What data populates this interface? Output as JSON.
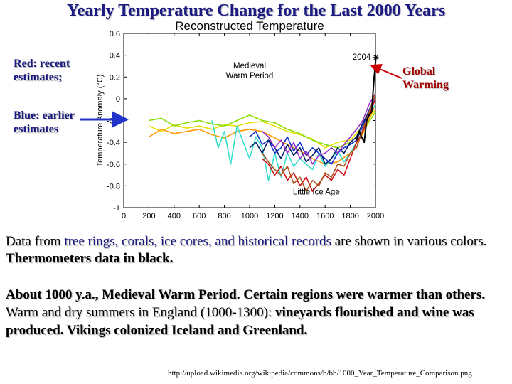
{
  "slide": {
    "title": "Yearly Temperature Change for the Last 2000 Years",
    "red_label": "Red: recent estimates;",
    "blue_label": "Blue: earlier estimates",
    "global_warming_label": "Global Warming",
    "para1_a": "Data from ",
    "para1_b": "tree rings, corals, ice cores, and historical records",
    "para1_c": " are shown in various colors. ",
    "para1_d": "Thermometers data in black.",
    "para2_a": "About 1000 y.a., Medieval Warm Period. Certain regions were warmer than others.",
    "para2_b": " Warm and dry summers in England (1000-1300): ",
    "para2_c": "vineyards flourished and wine was produced. Vikings colonized Iceland and Greenland.",
    "source": "http://upload.wikimedia.org/wikipedia/commons/b/bb/1000_Year_Temperature_Comparison.png"
  },
  "colors": {
    "title": "#1a1a80",
    "red_text": "#a00000",
    "arrow_blue": "#2233cc",
    "arrow_red": "#cc0000"
  },
  "chart_data": {
    "type": "line",
    "title": "Reconstructed Temperature",
    "xlabel": "",
    "ylabel": "Temperature Anomaly (°C)",
    "xlim": [
      0,
      2000
    ],
    "ylim": [
      -1,
      0.6
    ],
    "xticks": [
      0,
      200,
      400,
      600,
      800,
      1000,
      1200,
      1400,
      1600,
      1800,
      2000
    ],
    "yticks": [
      -1,
      -0.8,
      -0.6,
      -0.4,
      -0.2,
      0,
      0.2,
      0.4,
      0.6
    ],
    "ytick_labels": [
      "-1",
      "-0.8",
      "-0.6",
      "-0.4",
      "-0.2",
      "0",
      "0.2",
      "0.4",
      "0.6"
    ],
    "annotations": [
      {
        "text": "Medieval",
        "x": 1000,
        "y": 0.28
      },
      {
        "text": "Warm Period",
        "x": 1000,
        "y": 0.19
      },
      {
        "text": "Little Ice Age",
        "x": 1530,
        "y": -0.88
      },
      {
        "text": "2004",
        "x": 1890,
        "y": 0.36
      }
    ],
    "marker_2004": {
      "x": 2004,
      "y": 0.38
    },
    "series": [
      {
        "name": "yellow",
        "color": "#e8e000",
        "x": [
          200,
          300,
          400,
          500,
          600,
          700,
          800,
          900,
          1000,
          1100,
          1200,
          1300,
          1400,
          1500,
          1600,
          1700,
          1800,
          1900,
          2000
        ],
        "values": [
          -0.25,
          -0.3,
          -0.24,
          -0.27,
          -0.25,
          -0.28,
          -0.24,
          -0.25,
          -0.22,
          -0.21,
          -0.25,
          -0.3,
          -0.33,
          -0.37,
          -0.45,
          -0.4,
          -0.38,
          -0.25,
          -0.1
        ]
      },
      {
        "name": "lime",
        "color": "#88dd00",
        "x": [
          200,
          300,
          400,
          500,
          600,
          700,
          800,
          900,
          1000,
          1100,
          1200,
          1300,
          1400,
          1500,
          1600,
          1700,
          1800,
          1900,
          2000
        ],
        "values": [
          -0.2,
          -0.18,
          -0.25,
          -0.22,
          -0.2,
          -0.23,
          -0.25,
          -0.2,
          -0.15,
          -0.2,
          -0.22,
          -0.28,
          -0.32,
          -0.38,
          -0.42,
          -0.45,
          -0.4,
          -0.3,
          -0.12
        ]
      },
      {
        "name": "orange",
        "color": "#ff9900",
        "x": [
          200,
          300,
          400,
          500,
          600,
          700,
          800,
          900,
          1000,
          1100,
          1200,
          1300,
          1400,
          1500,
          1600,
          1700,
          1800,
          1900,
          2000
        ],
        "values": [
          -0.35,
          -0.28,
          -0.32,
          -0.3,
          -0.28,
          -0.33,
          -0.36,
          -0.3,
          -0.28,
          -0.3,
          -0.36,
          -0.42,
          -0.48,
          -0.55,
          -0.6,
          -0.58,
          -0.5,
          -0.32,
          -0.05
        ]
      },
      {
        "name": "cyan",
        "color": "#33ddcc",
        "x": [
          700,
          750,
          800,
          850,
          900,
          950,
          1000,
          1050,
          1100,
          1150,
          1200,
          1250,
          1300,
          1350,
          1400,
          1450,
          1500,
          1550,
          1600,
          1650,
          1700,
          1750,
          1800,
          1850,
          1900,
          1950,
          2000
        ],
        "values": [
          -0.2,
          -0.45,
          -0.3,
          -0.6,
          -0.25,
          -0.4,
          -0.55,
          -0.35,
          -0.45,
          -0.75,
          -0.5,
          -0.72,
          -0.5,
          -0.62,
          -0.55,
          -0.6,
          -0.65,
          -0.5,
          -0.62,
          -0.55,
          -0.48,
          -0.58,
          -0.5,
          -0.4,
          -0.3,
          -0.15,
          -0.05
        ]
      },
      {
        "name": "blue",
        "color": "#1133cc",
        "x": [
          1000,
          1050,
          1100,
          1150,
          1200,
          1250,
          1300,
          1350,
          1400,
          1450,
          1500,
          1550,
          1600,
          1650,
          1700,
          1750,
          1800,
          1850,
          1900,
          1950,
          2000
        ],
        "values": [
          -0.35,
          -0.3,
          -0.42,
          -0.38,
          -0.5,
          -0.45,
          -0.35,
          -0.48,
          -0.4,
          -0.52,
          -0.45,
          -0.5,
          -0.55,
          -0.6,
          -0.5,
          -0.45,
          -0.42,
          -0.38,
          -0.25,
          -0.1,
          0.0
        ]
      },
      {
        "name": "navy",
        "color": "#001a66",
        "x": [
          1000,
          1050,
          1100,
          1150,
          1200,
          1250,
          1300,
          1350,
          1400,
          1450,
          1500,
          1550,
          1600,
          1650,
          1700,
          1750,
          1800,
          1850,
          1900,
          1950,
          2000
        ],
        "values": [
          -0.45,
          -0.4,
          -0.5,
          -0.38,
          -0.45,
          -0.55,
          -0.42,
          -0.52,
          -0.45,
          -0.58,
          -0.52,
          -0.45,
          -0.6,
          -0.55,
          -0.45,
          -0.5,
          -0.4,
          -0.35,
          -0.22,
          -0.12,
          0.05
        ]
      },
      {
        "name": "purple",
        "color": "#9933cc",
        "x": [
          1100,
          1150,
          1200,
          1250,
          1300,
          1350,
          1400,
          1450,
          1500,
          1550,
          1600,
          1650,
          1700,
          1750,
          1800,
          1850,
          1900,
          1950,
          2000
        ],
        "values": [
          -0.3,
          -0.35,
          -0.45,
          -0.38,
          -0.5,
          -0.4,
          -0.55,
          -0.48,
          -0.6,
          -0.52,
          -0.5,
          -0.45,
          -0.5,
          -0.42,
          -0.35,
          -0.28,
          -0.2,
          -0.05,
          0.05
        ]
      },
      {
        "name": "red",
        "color": "#cc1111",
        "x": [
          1100,
          1150,
          1200,
          1250,
          1300,
          1350,
          1400,
          1450,
          1500,
          1550,
          1600,
          1650,
          1700,
          1750,
          1800,
          1850,
          1900,
          1950,
          2000
        ],
        "values": [
          -0.55,
          -0.6,
          -0.7,
          -0.62,
          -0.75,
          -0.68,
          -0.8,
          -0.72,
          -0.85,
          -0.78,
          -0.7,
          -0.75,
          -0.65,
          -0.7,
          -0.55,
          -0.4,
          -0.3,
          -0.15,
          0.0
        ]
      },
      {
        "name": "brown",
        "color": "#aa5522",
        "x": [
          1100,
          1150,
          1200,
          1250,
          1300,
          1350,
          1400,
          1450,
          1500,
          1550,
          1600,
          1650,
          1700,
          1750,
          1800,
          1850,
          1900,
          1950,
          2000
        ],
        "values": [
          -0.5,
          -0.58,
          -0.65,
          -0.7,
          -0.62,
          -0.78,
          -0.72,
          -0.85,
          -0.75,
          -0.8,
          -0.68,
          -0.72,
          -0.6,
          -0.62,
          -0.5,
          -0.45,
          -0.28,
          -0.12,
          0.05
        ]
      },
      {
        "name": "thermometer",
        "color": "#000000",
        "x": [
          1850,
          1870,
          1890,
          1910,
          1930,
          1950,
          1970,
          1980,
          1990,
          2000,
          2004
        ],
        "values": [
          -0.38,
          -0.3,
          -0.35,
          -0.4,
          -0.2,
          -0.15,
          -0.12,
          0.05,
          0.2,
          0.33,
          0.38
        ]
      }
    ]
  }
}
